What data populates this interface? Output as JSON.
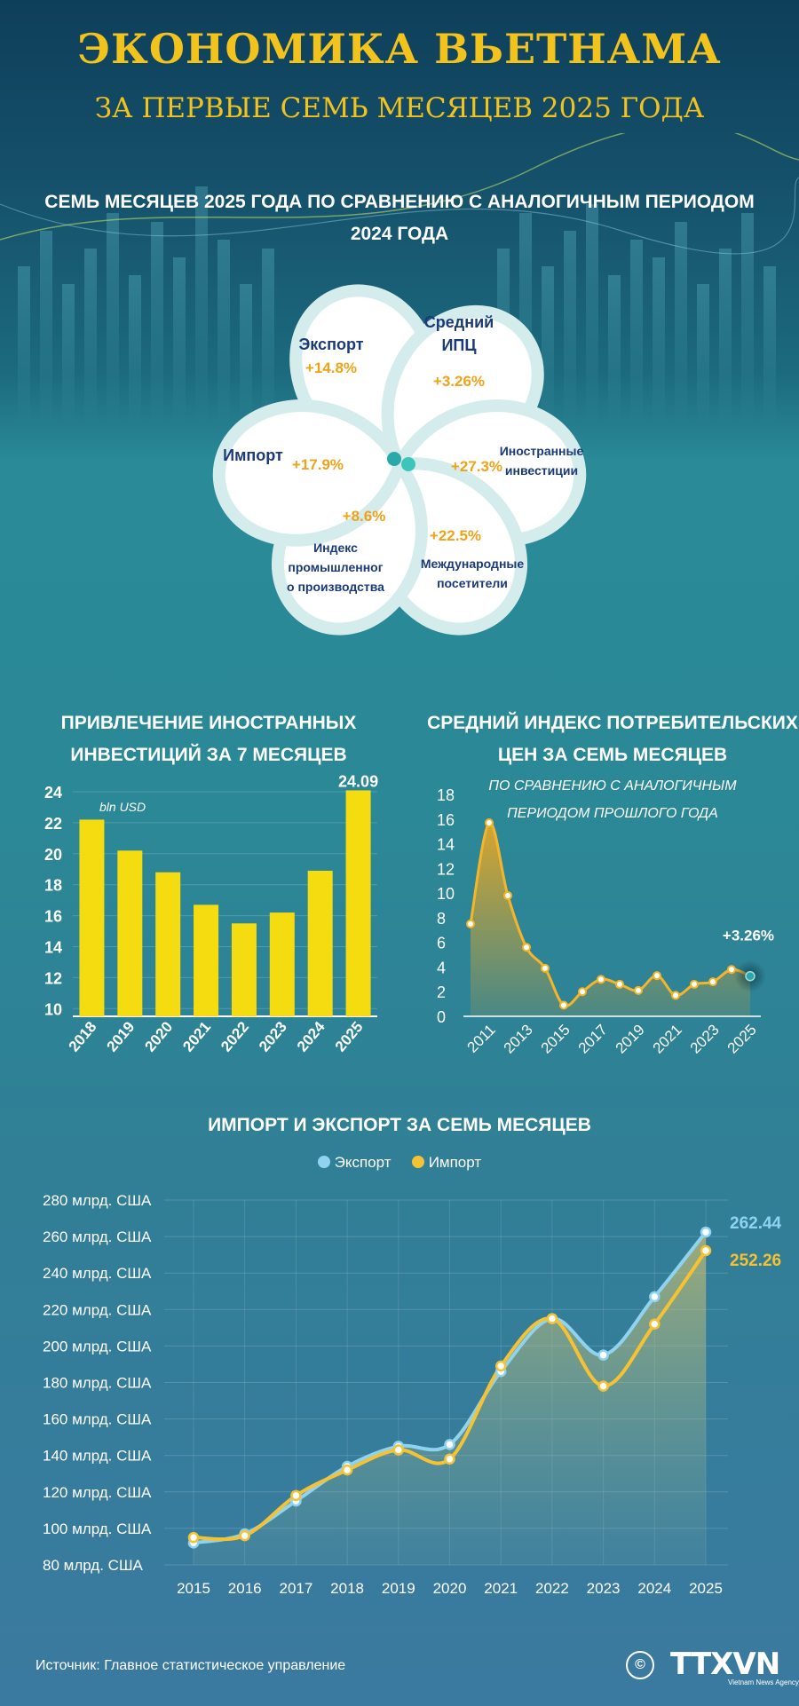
{
  "header": {
    "title": "ЭКОНОМИКА ВЬЕТНАМА",
    "subtitle": "ЗА ПЕРВЫЕ СЕМЬ МЕСЯЦЕВ 2025 ГОДА"
  },
  "comparison": {
    "heading_line1": "СЕМЬ МЕСЯЦЕВ 2025 ГОДА ПО СРАВНЕНИЮ С АНАЛОГИЧНЫМ ПЕРИОДОМ",
    "heading_line2": "2024 ГОДА",
    "petals": {
      "export": {
        "name": "Экспорт",
        "value": "+14.8%"
      },
      "cpi": {
        "name_line1": "Средний",
        "name_line2": "ИПЦ",
        "value": "+3.26%"
      },
      "import": {
        "name": "Импорт",
        "value": "+17.9%"
      },
      "fdi": {
        "name_line1": "Иностранные",
        "name_line2": "инвестиции",
        "value": "+27.3%"
      },
      "industry": {
        "name_line1": "Индекс",
        "name_line2": "промышленног",
        "name_line3": "о производства",
        "value": "+8.6%"
      },
      "visitors": {
        "name_line1": "Международные",
        "name_line2": "посетители",
        "value": "+22.5%"
      }
    }
  },
  "colors": {
    "accent_yellow": "#f2c21d",
    "bar_yellow": "#f5dc10",
    "value_orange": "#f0a31a",
    "export_blue": "#8fd3f0",
    "import_yellow": "#f5c233",
    "petal_text": "#1a3a7a"
  },
  "chart_data": [
    {
      "type": "bar",
      "title_line1": "ПРИВЛЕЧЕНИЕ ИНОСТРАННЫХ",
      "title_line2": "ИНВЕСТИЦИЙ ЗА 7 МЕСЯЦЕВ",
      "unit": "bln USD",
      "categories": [
        "2018",
        "2019",
        "2020",
        "2021",
        "2022",
        "2023",
        "2024",
        "2025"
      ],
      "values": [
        22.2,
        20.2,
        18.8,
        16.7,
        15.5,
        16.2,
        18.9,
        24.09
      ],
      "value_label": "24.09",
      "ylim": [
        9.5,
        24
      ],
      "yticks": [
        10,
        12,
        14,
        16,
        18,
        20,
        22,
        24
      ]
    },
    {
      "type": "area",
      "title_line1": "СРЕДНИЙ ИНДЕКС ПОТРЕБИТЕЛЬСКИХ",
      "title_line2": "ЦЕН ЗА СЕМЬ МЕСЯЦЕВ",
      "subtitle_line1": "ПО СРАВНЕНИЮ С АНАЛОГИЧНЫМ",
      "subtitle_line2": "ПЕРИОДОМ ПРОШЛОГО ГОДА",
      "x": [
        2010,
        2011,
        2012,
        2013,
        2014,
        2015,
        2016,
        2017,
        2018,
        2019,
        2020,
        2021,
        2022,
        2023,
        2024,
        2025
      ],
      "values": [
        7.5,
        15.7,
        9.8,
        5.6,
        3.9,
        0.9,
        2.0,
        3.0,
        2.6,
        2.1,
        3.3,
        1.7,
        2.6,
        2.8,
        3.8,
        3.26
      ],
      "xticks": [
        "2011",
        "2013",
        "2015",
        "2017",
        "2019",
        "2021",
        "2023",
        "2025"
      ],
      "yticks": [
        0,
        2,
        4,
        6,
        8,
        10,
        12,
        14,
        16,
        18
      ],
      "ylim": [
        0,
        18
      ],
      "value_label": "+3.26%"
    },
    {
      "type": "area",
      "title": "ИМПОРТ И ЭКСПОРТ ЗА СЕМЬ МЕСЯЦЕВ",
      "legend_position": "top-center",
      "x": [
        "2015",
        "2016",
        "2017",
        "2018",
        "2019",
        "2020",
        "2021",
        "2022",
        "2023",
        "2024",
        "2025"
      ],
      "series": [
        {
          "name": "Экспорт",
          "values": [
            92,
            97,
            115,
            134,
            145,
            146,
            186,
            215,
            195,
            227,
            262.44
          ],
          "label": "262.44"
        },
        {
          "name": "Импорт",
          "values": [
            95,
            96,
            118,
            132,
            143,
            138,
            189,
            215,
            178,
            212,
            252.26
          ],
          "label": "252.26"
        }
      ],
      "yticks": [
        "80 млрд. США",
        "100 млрд. США",
        "120 млрд. США",
        "140 млрд. США",
        "160 млрд. США",
        "180 млрд. США",
        "200 млрд. США",
        "220 млрд. США",
        "240 млрд. США",
        "260 млрд. США",
        "280 млрд. США"
      ],
      "ylim": [
        80,
        280
      ]
    }
  ],
  "footer": {
    "source": "Источник: Главное статистическое управление",
    "logo": "TTXVN",
    "logo_sub": "Vietnam News Agency",
    "copyright": "©"
  }
}
